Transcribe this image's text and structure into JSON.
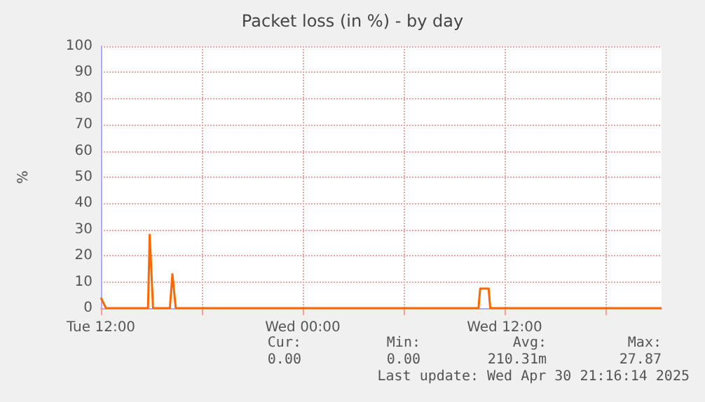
{
  "chart_data": {
    "type": "line",
    "title": "Packet loss (in %) - by day",
    "ylabel": "%",
    "x": [
      "2025-04-29T12:00",
      "2025-04-29T12:18",
      "2025-04-29T14:48",
      "2025-04-29T14:54",
      "2025-04-29T15:06",
      "2025-04-29T16:06",
      "2025-04-29T16:15",
      "2025-04-29T16:27",
      "2025-04-30T10:27",
      "2025-04-30T10:33",
      "2025-04-30T11:03",
      "2025-04-30T11:09",
      "2025-04-30T21:20"
    ],
    "series": [
      {
        "color": "#ff6600",
        "values": [
          4,
          0,
          0,
          28,
          0,
          0,
          13,
          0,
          0,
          7.5,
          7.5,
          0,
          0
        ]
      }
    ],
    "xlim": [
      "2025-04-29T12:00",
      "2025-04-30T21:20"
    ],
    "xticks": [
      {
        "value": "2025-04-29T12:00",
        "label": "Tue 12:00"
      },
      {
        "value": "2025-04-29T18:00",
        "label": null
      },
      {
        "value": "2025-04-30T00:00",
        "label": "Wed 00:00"
      },
      {
        "value": "2025-04-30T06:00",
        "label": null
      },
      {
        "value": "2025-04-30T12:00",
        "label": "Wed 12:00"
      },
      {
        "value": "2025-04-30T18:00",
        "label": null
      }
    ],
    "ylim": [
      0,
      100
    ],
    "yticks": [
      0,
      10,
      20,
      30,
      40,
      50,
      60,
      70,
      80,
      90,
      100
    ],
    "grid": true,
    "marker": "none",
    "line_style": "solid",
    "annotations": [
      "Cur:",
      "Min:",
      "Avg:",
      "Max:",
      "0.00",
      "0.00",
      "210.31m",
      "27.87",
      "Last update: Wed Apr 30 21:16:14 2025"
    ]
  }
}
